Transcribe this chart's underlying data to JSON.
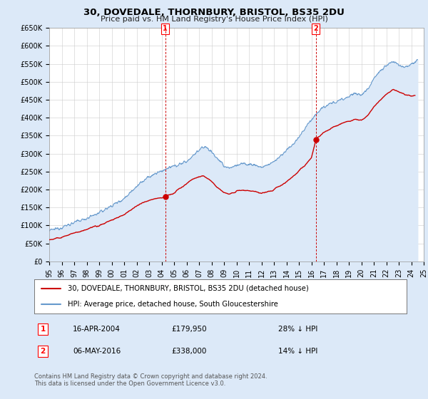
{
  "title": "30, DOVEDALE, THORNBURY, BRISTOL, BS35 2DU",
  "subtitle": "Price paid vs. HM Land Registry's House Price Index (HPI)",
  "ylim": [
    0,
    650000
  ],
  "yticks": [
    0,
    50000,
    100000,
    150000,
    200000,
    250000,
    300000,
    350000,
    400000,
    450000,
    500000,
    550000,
    600000,
    650000
  ],
  "ytick_labels": [
    "£0",
    "£50K",
    "£100K",
    "£150K",
    "£200K",
    "£250K",
    "£300K",
    "£350K",
    "£400K",
    "£450K",
    "£500K",
    "£550K",
    "£600K",
    "£650K"
  ],
  "hpi_color": "#6699cc",
  "hpi_fill_color": "#dce9f8",
  "price_color": "#cc0000",
  "dashed_line_color": "#cc0000",
  "marker1_x": 2004.29,
  "marker1_y": 179950,
  "marker2_x": 2016.35,
  "marker2_y": 338000,
  "legend_line1": "30, DOVEDALE, THORNBURY, BRISTOL, BS35 2DU (detached house)",
  "legend_line2": "HPI: Average price, detached house, South Gloucestershire",
  "ann1_label": "1",
  "ann1_date": "16-APR-2004",
  "ann1_price": "£179,950",
  "ann1_hpi": "28% ↓ HPI",
  "ann2_label": "2",
  "ann2_date": "06-MAY-2016",
  "ann2_price": "£338,000",
  "ann2_hpi": "14% ↓ HPI",
  "footer": "Contains HM Land Registry data © Crown copyright and database right 2024.\nThis data is licensed under the Open Government Licence v3.0.",
  "bg_color": "#dce9f8",
  "plot_bg_color": "#ffffff",
  "grid_color": "#cccccc",
  "xlim_start": 1995,
  "xlim_end": 2025
}
